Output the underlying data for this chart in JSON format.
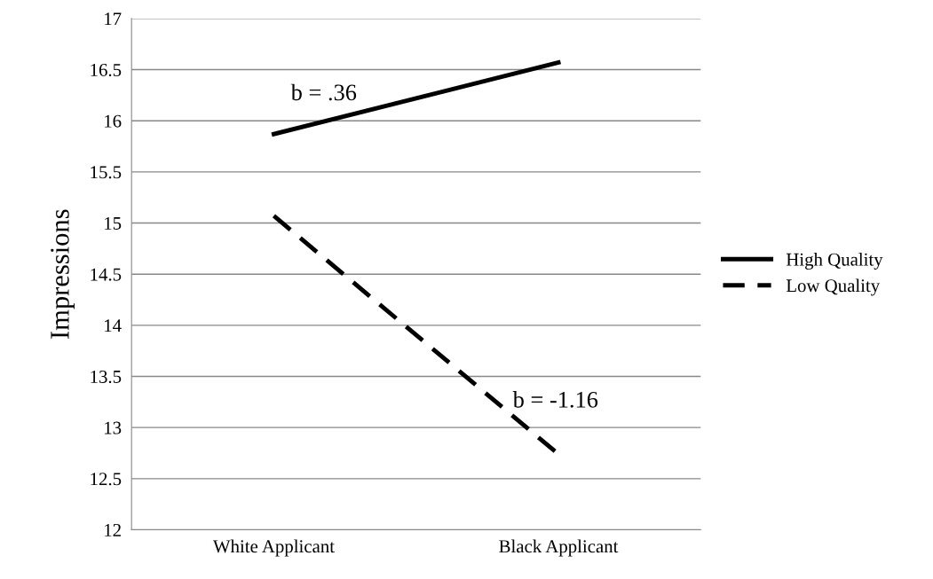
{
  "chart_data": {
    "type": "line",
    "ylabel": "Impressions",
    "categories": [
      "White Applicant",
      "Black Applicant"
    ],
    "series": [
      {
        "name": "High Quality",
        "color": "#000000",
        "values": [
          15.87,
          16.57
        ],
        "line_style": "solid"
      },
      {
        "name": "Low Quality",
        "color": "#000000",
        "values": [
          15.07,
          12.74
        ],
        "line_style": "dashed"
      }
    ],
    "ylim": [
      12,
      17
    ],
    "yticks": [
      12,
      12.5,
      13,
      13.5,
      14,
      14.5,
      15,
      15.5,
      16,
      16.5,
      17
    ],
    "grid": "y",
    "legend": "right",
    "marker": "none",
    "annotations": [
      "b = .36",
      "b = -1.16"
    ]
  }
}
